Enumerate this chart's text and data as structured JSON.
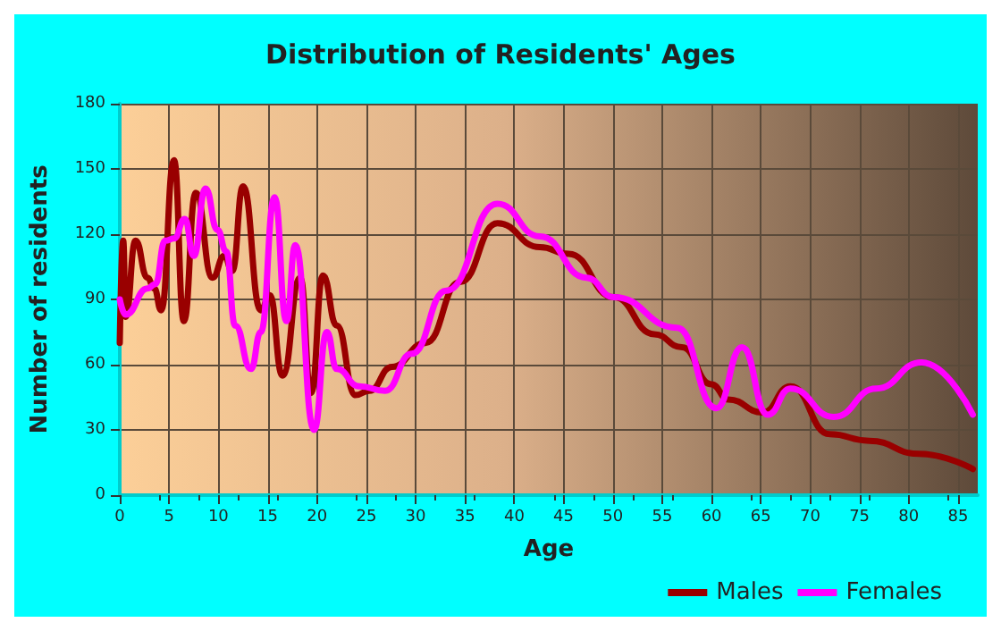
{
  "chart_data": {
    "type": "line",
    "title": "Distribution of Residents' Ages",
    "xlabel": "Age",
    "ylabel": "Number of residents",
    "xlim": [
      0,
      87
    ],
    "xticks": [
      0,
      5,
      10,
      15,
      20,
      25,
      30,
      35,
      40,
      45,
      50,
      55,
      60,
      65,
      70,
      75,
      80,
      85
    ],
    "ylim": [
      0,
      180
    ],
    "yticks": [
      0,
      30,
      60,
      90,
      120,
      150,
      180
    ],
    "grid": true,
    "legend": "bottom right",
    "marker": "none",
    "line_style": "solid",
    "series": [
      {
        "name": "Males",
        "color": "#990000",
        "x": [
          0,
          0.35,
          0.6,
          1.6,
          2.8,
          3.5,
          4.2,
          5.5,
          6.5,
          7.7,
          9.4,
          10.6,
          11.4,
          12.5,
          14.3,
          15.2,
          16.5,
          18.3,
          19.4,
          20.6,
          22,
          23.9,
          25.3,
          27.6,
          31,
          34.5,
          38.3,
          42.6,
          45.5,
          50.1,
          54.2,
          57,
          60,
          61.7,
          65.2,
          68,
          72,
          76,
          81,
          86.5
        ],
        "values": [
          70,
          117,
          82,
          117,
          100,
          95,
          85,
          154,
          80,
          139,
          100,
          110,
          103,
          142,
          85,
          92,
          55,
          100,
          47,
          101,
          78,
          46,
          48,
          59,
          70,
          98,
          125,
          114,
          111,
          91,
          74,
          68,
          51,
          44,
          38,
          50,
          28,
          25,
          19,
          12
        ]
      },
      {
        "name": "Females",
        "color": "#ff00ff",
        "x": [
          0,
          0.6,
          2.8,
          3.6,
          4.6,
          5.5,
          6.6,
          7.5,
          8.7,
          9.9,
          10.8,
          11.7,
          13.3,
          14.3,
          15.7,
          16.9,
          17.8,
          19.7,
          21,
          22,
          24.3,
          26.9,
          29.6,
          33.1,
          38.3,
          42.6,
          47.3,
          50.1,
          56.5,
          60.5,
          63.1,
          65.7,
          68,
          72.4,
          76.7,
          81.3,
          86.5
        ],
        "values": [
          90,
          83,
          95,
          97,
          117,
          118,
          127,
          110,
          141,
          122,
          112,
          78,
          58,
          75,
          137,
          80,
          115,
          30,
          75,
          58,
          50,
          48,
          65,
          94,
          134,
          119,
          100,
          91,
          77,
          40,
          68,
          37,
          49,
          36,
          49,
          61,
          37
        ]
      }
    ]
  }
}
